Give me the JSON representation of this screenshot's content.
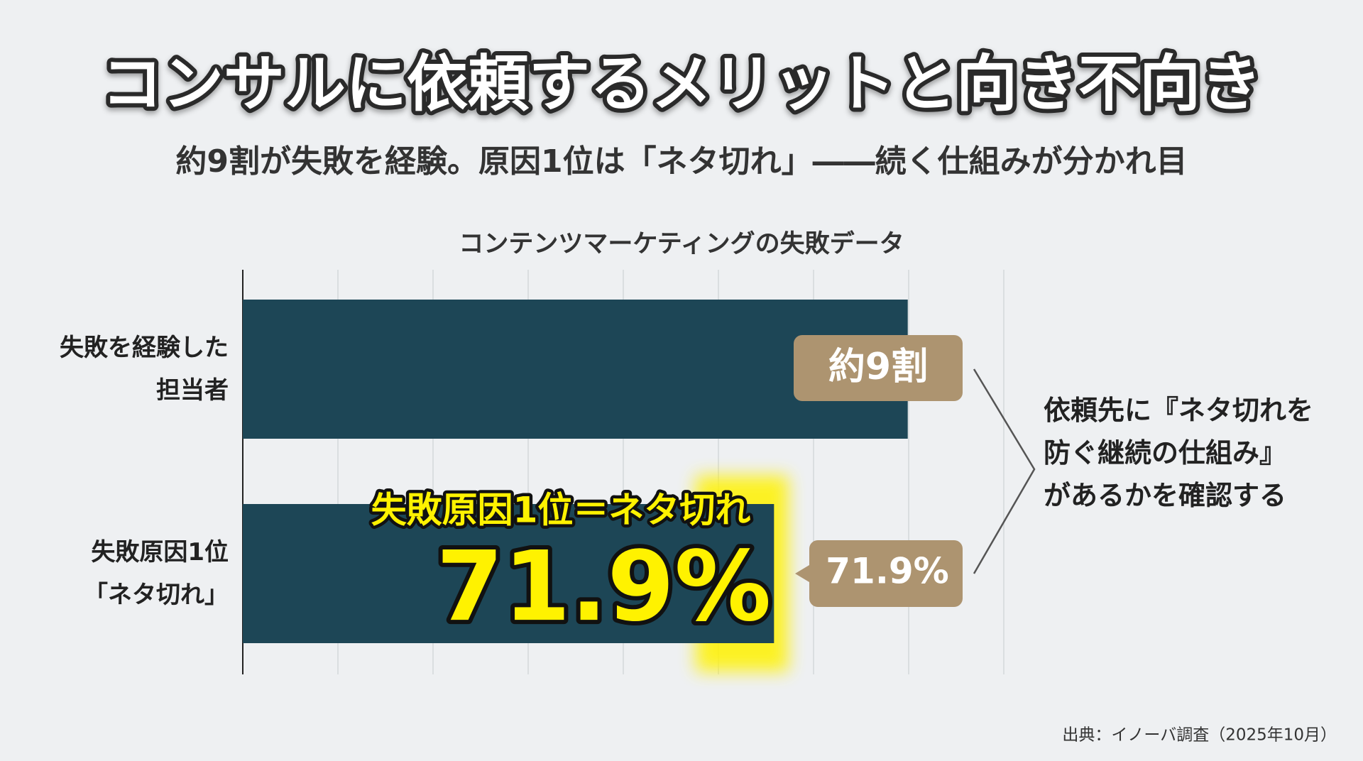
{
  "chart_data": {
    "type": "hbar",
    "title": "コンサルに依頼するメリットと向き不向き",
    "subtitle": "約9割が失敗を経験。原因1位は「ネタ切れ」――続く仕組みが分かれ目",
    "chart_title": "コンテンツマーケティングの失敗データ",
    "categories": [
      "失敗を経験した\n担当者",
      "失敗原因1位\n「ネタ切れ」"
    ],
    "values": [
      90,
      71.9
    ],
    "value_labels": [
      "約9割",
      "71.9%"
    ],
    "color": "#1d4656",
    "label_color": "#ad9470",
    "xlim": [
      0,
      103
    ],
    "grid": true,
    "highlight": {
      "index": 1,
      "text": "失敗原因1位＝ネタ切れ",
      "color": "#fff200"
    },
    "note": "依頼先に『ネタ切れを\n防ぐ継続の仕組み』\nがあるかを確認する",
    "source": "出典：イノーバ調査（2025年10月）"
  }
}
